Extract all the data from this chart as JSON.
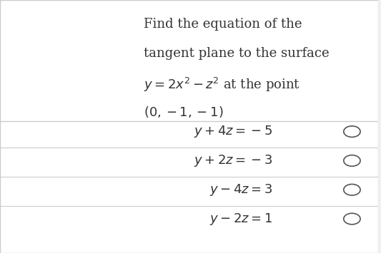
{
  "bg_color": "#f0f0f0",
  "panel_color": "#ffffff",
  "question_text_lines": [
    "Find the equation of the",
    "tangent plane to the surface",
    "$y = 2x^2 - z^2$ at the point",
    "$(0, -1, -1)$"
  ],
  "answers": [
    "$y + 4z = -5$",
    "$y + 2z = -3$",
    "$y - 4z = 3$",
    "$y - 2z = 1$"
  ],
  "divider_color": "#cccccc",
  "text_color": "#333333",
  "question_fontsize": 13,
  "answer_fontsize": 13,
  "circle_color": "#555555"
}
